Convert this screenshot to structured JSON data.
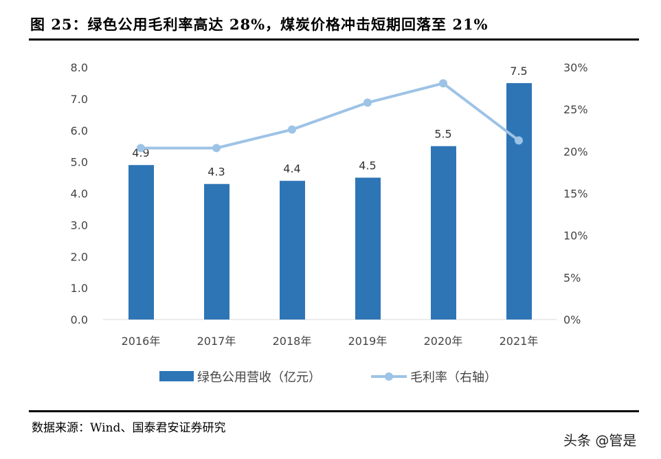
{
  "title": "图 25：绿色公用毛利率高达 28%，煤炭价格冲击短期回落至 21%",
  "source": "数据来源：Wind、国泰君安证券研究",
  "watermark": "头条 @管是",
  "chart_data": {
    "type": "bar+line",
    "categories": [
      "2016年",
      "2017年",
      "2018年",
      "2019年",
      "2020年",
      "2021年"
    ],
    "series": [
      {
        "name": "绿色公用营收（亿元）",
        "type": "bar",
        "axis": "left",
        "color": "#2e75b6",
        "values": [
          4.9,
          4.3,
          4.4,
          4.5,
          5.5,
          7.5
        ],
        "labels": [
          "4.9",
          "4.3",
          "4.4",
          "4.5",
          "5.5",
          "7.5"
        ]
      },
      {
        "name": "毛利率（右轴）",
        "type": "line",
        "axis": "right",
        "color": "#9dc3e6",
        "values": [
          20.4,
          20.4,
          22.6,
          25.8,
          28.1,
          21.3
        ]
      }
    ],
    "left_axis": {
      "ylim": [
        0,
        8
      ],
      "ticks": [
        "0.0",
        "1.0",
        "2.0",
        "3.0",
        "4.0",
        "5.0",
        "6.0",
        "7.0",
        "8.0"
      ]
    },
    "right_axis": {
      "ylim": [
        0,
        30
      ],
      "ticks": [
        "0%",
        "5%",
        "10%",
        "15%",
        "20%",
        "25%",
        "30%"
      ]
    },
    "legend_position": "bottom",
    "grid": false
  }
}
